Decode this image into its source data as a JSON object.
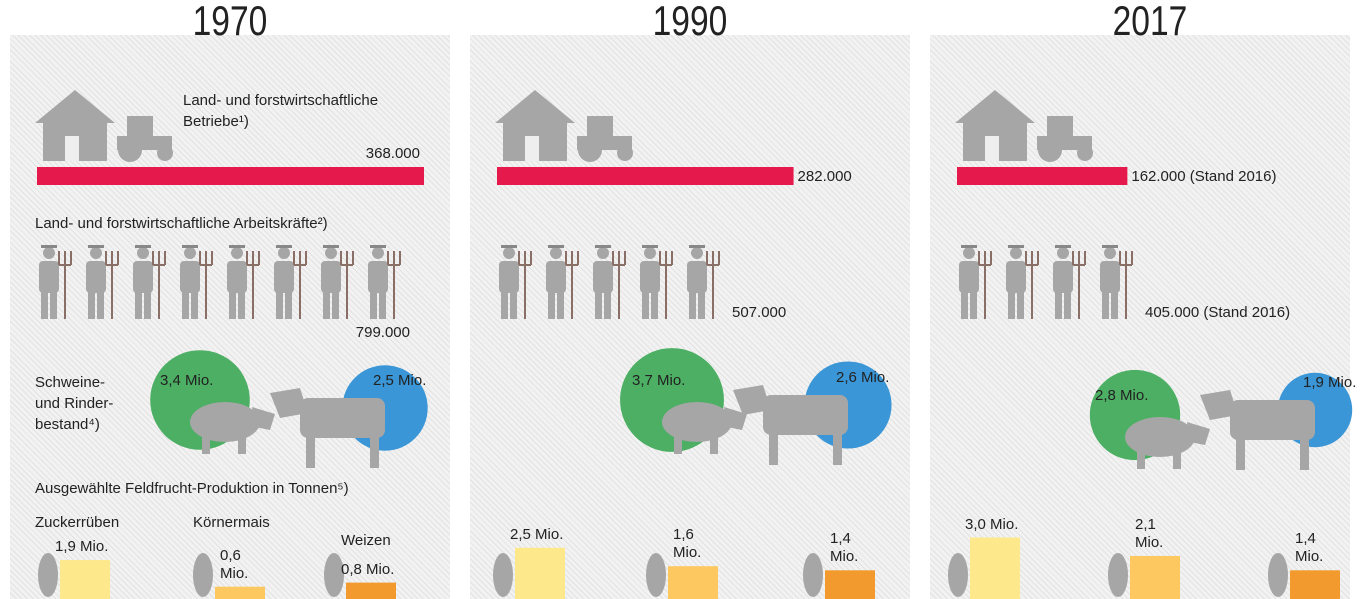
{
  "panels": [
    {
      "year": "1970",
      "farms_caption": "Land- und forstwirtschaftliche Betriebe¹)",
      "farms": {
        "value": 368000,
        "label": "368.000"
      },
      "workers_caption": "Land- und forstwirtschaftliche Arbeitskräfte²)",
      "workers": {
        "value": 799000,
        "label": "799.000"
      },
      "livestock_caption": "Schweine- und Rinder- bestand⁴)",
      "pigs": {
        "value": 3.4,
        "label": "3,4 Mio."
      },
      "cattle": {
        "value": 2.5,
        "label": "2,5 Mio."
      },
      "crops_caption": "Ausgewählte Feldfrucht-Produktion in Tonnen⁵)",
      "crops": [
        {
          "name": "Zuckerrüben",
          "value": 1.9,
          "label": "1,9 Mio."
        },
        {
          "name": "Körnermais",
          "value": 0.6,
          "label": "0,6 Mio."
        },
        {
          "name": "Weizen",
          "value": 0.8,
          "label": "0,8 Mio."
        }
      ]
    },
    {
      "year": "1990",
      "farms": {
        "value": 282000,
        "label": "282.000"
      },
      "workers": {
        "value": 507000,
        "label": "507.000"
      },
      "pigs": {
        "value": 3.7,
        "label": "3,7 Mio."
      },
      "cattle": {
        "value": 2.6,
        "label": "2,6 Mio."
      },
      "crops": [
        {
          "value": 2.5,
          "label": "2,5 Mio."
        },
        {
          "value": 1.6,
          "label": "1,6 Mio."
        },
        {
          "value": 1.4,
          "label": "1,4 Mio."
        }
      ]
    },
    {
      "year": "2017",
      "farms": {
        "value": 162000,
        "label": "162.000 (Stand 2016)"
      },
      "workers": {
        "value": 405000,
        "label": "405.000 (Stand 2016)"
      },
      "pigs": {
        "value": 2.8,
        "label": "2,8 Mio."
      },
      "cattle": {
        "value": 1.9,
        "label": "1,9 Mio."
      },
      "crops": [
        {
          "value": 3.0,
          "label": "3,0 Mio."
        },
        {
          "value": 2.1,
          "label": "2,1 Mio."
        },
        {
          "value": 1.4,
          "label": "1,4 Mio."
        }
      ]
    }
  ]
}
